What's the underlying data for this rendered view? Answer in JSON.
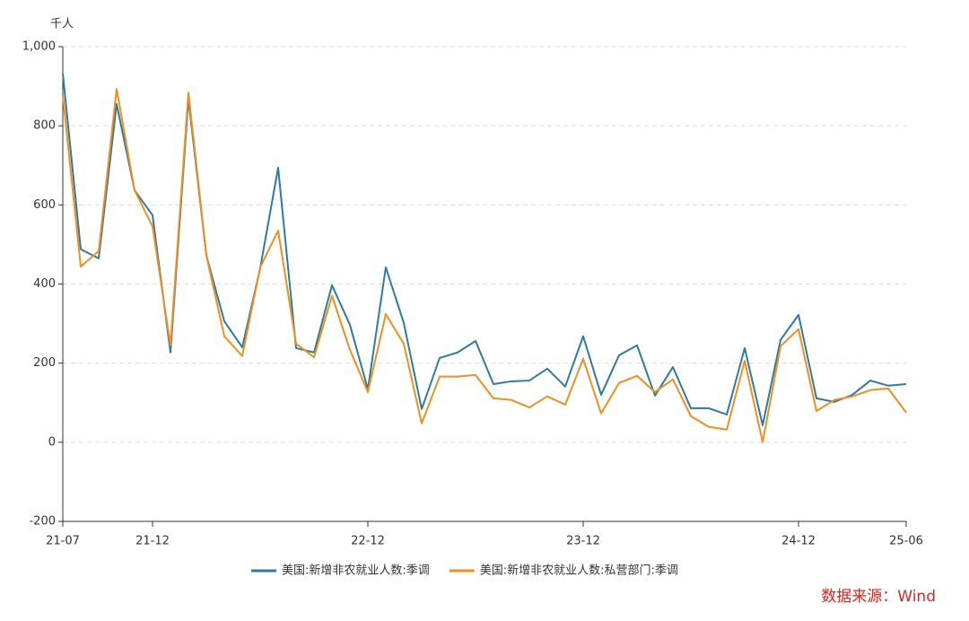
{
  "chart_data": {
    "type": "line",
    "y_unit": "千人",
    "source": "数据来源：Wind",
    "categories": [
      "21-07",
      null,
      null,
      null,
      null,
      "21-12",
      null,
      null,
      null,
      null,
      null,
      null,
      null,
      null,
      null,
      null,
      null,
      "22-12",
      null,
      null,
      null,
      null,
      null,
      null,
      null,
      null,
      null,
      null,
      null,
      "23-12",
      null,
      null,
      null,
      null,
      null,
      null,
      null,
      null,
      null,
      null,
      null,
      "24-12",
      null,
      null,
      null,
      null,
      null,
      "25-06"
    ],
    "series": [
      {
        "name": "美国:新增非农就业人数:季调",
        "color": "#2b7ba4",
        "values": [
          932,
          488,
          465,
          855,
          637,
          574,
          227,
          868,
          472,
          306,
          240,
          440,
          694,
          238,
          227,
          397,
          297,
          134,
          442,
          302,
          84,
          213,
          227,
          256,
          147,
          154,
          156,
          186,
          141,
          268,
          120,
          220,
          245,
          118,
          190,
          86,
          86,
          70,
          238,
          43,
          259,
          322,
          111,
          102,
          120,
          156,
          143,
          147
        ]
      },
      {
        "name": "美国:新增非农就业人数:私营部门:季调",
        "color": "#f28e1c",
        "values": [
          878,
          444,
          483,
          893,
          637,
          546,
          245,
          884,
          472,
          268,
          218,
          442,
          535,
          249,
          215,
          370,
          234,
          127,
          324,
          249,
          48,
          166,
          166,
          170,
          111,
          107,
          88,
          116,
          95,
          211,
          73,
          150,
          168,
          127,
          159,
          66,
          39,
          32,
          206,
          0,
          243,
          286,
          79,
          107,
          116,
          132,
          136,
          75
        ]
      }
    ],
    "ylim": [
      -200,
      1000
    ],
    "yticks": [
      -200,
      0,
      200,
      400,
      600,
      800,
      {
        "value": 1000,
        "label": "1,000"
      }
    ],
    "grid": true
  }
}
